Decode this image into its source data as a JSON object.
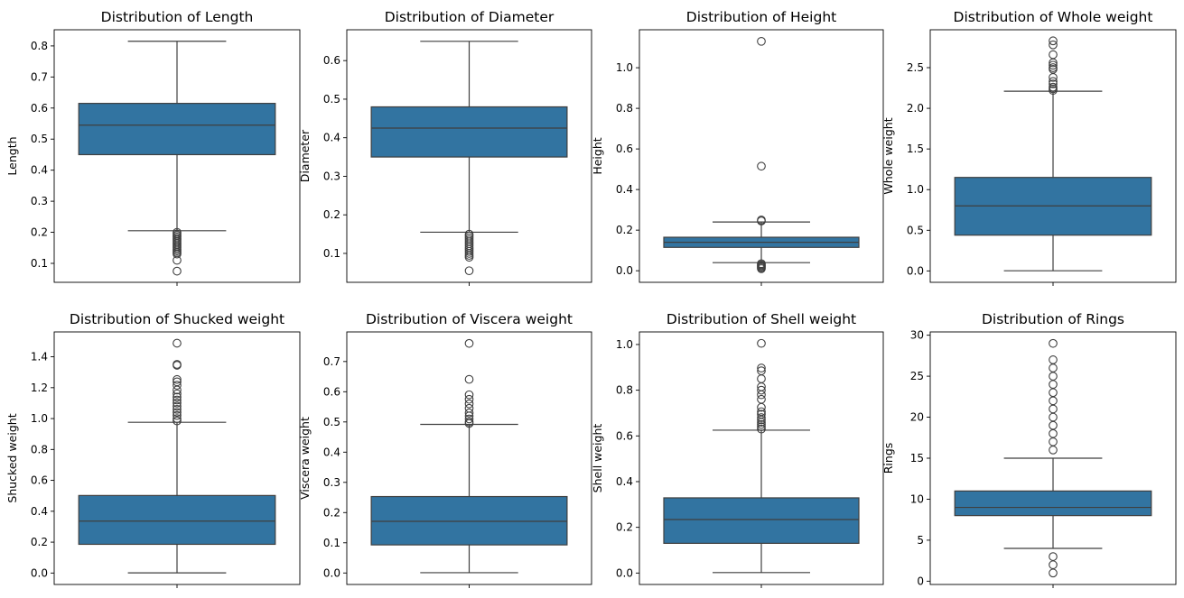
{
  "chart_data": [
    {
      "type": "box",
      "title": "Distribution of Length",
      "ylabel": "Length",
      "ylim": [
        0.039,
        0.852
      ],
      "yticks": [
        "0.1",
        "0.2",
        "0.3",
        "0.4",
        "0.5",
        "0.6",
        "0.7",
        "0.8"
      ],
      "box": {
        "whisker_low": 0.205,
        "q1": 0.45,
        "median": 0.545,
        "q3": 0.615,
        "whisker_high": 0.815
      },
      "outliers": [
        0.2,
        0.195,
        0.19,
        0.185,
        0.18,
        0.175,
        0.17,
        0.165,
        0.16,
        0.155,
        0.15,
        0.145,
        0.14,
        0.135,
        0.13,
        0.11,
        0.075
      ]
    },
    {
      "type": "box",
      "title": "Distribution of Diameter",
      "ylabel": "Diameter",
      "ylim": [
        0.025,
        0.68
      ],
      "yticks": [
        "0.1",
        "0.2",
        "0.3",
        "0.4",
        "0.5",
        "0.6"
      ],
      "box": {
        "whisker_low": 0.155,
        "q1": 0.35,
        "median": 0.425,
        "q3": 0.48,
        "whisker_high": 0.65
      },
      "outliers": [
        0.15,
        0.145,
        0.14,
        0.135,
        0.13,
        0.125,
        0.12,
        0.115,
        0.11,
        0.105,
        0.1,
        0.095,
        0.09,
        0.055
      ]
    },
    {
      "type": "box",
      "title": "Distribution of Height",
      "ylabel": "Height",
      "ylim": [
        -0.057,
        1.187
      ],
      "yticks": [
        "0.0",
        "0.2",
        "0.4",
        "0.6",
        "0.8",
        "1.0"
      ],
      "box": {
        "whisker_low": 0.04,
        "q1": 0.115,
        "median": 0.14,
        "q3": 0.165,
        "whisker_high": 0.24
      },
      "outliers": [
        1.13,
        0.515,
        0.25,
        0.245,
        0.035,
        0.03,
        0.025,
        0.02,
        0.015,
        0.01
      ]
    },
    {
      "type": "box",
      "title": "Distribution of Whole weight",
      "ylabel": "Whole weight",
      "ylim": [
        -0.14,
        2.966
      ],
      "yticks": [
        "0.0",
        "0.5",
        "1.0",
        "1.5",
        "2.0",
        "2.5"
      ],
      "box": {
        "whisker_low": 0.002,
        "q1": 0.44,
        "median": 0.8,
        "q3": 1.15,
        "whisker_high": 2.21
      },
      "outliers": [
        2.83,
        2.78,
        2.66,
        2.56,
        2.53,
        2.5,
        2.48,
        2.38,
        2.33,
        2.3,
        2.26,
        2.24,
        2.22
      ]
    },
    {
      "type": "box",
      "title": "Distribution of Shucked weight",
      "ylabel": "Shucked weight",
      "ylim": [
        -0.074,
        1.561
      ],
      "yticks": [
        "0.0",
        "0.2",
        "0.4",
        "0.6",
        "0.8",
        "1.0",
        "1.2",
        "1.4"
      ],
      "box": {
        "whisker_low": 0.001,
        "q1": 0.186,
        "median": 0.336,
        "q3": 0.502,
        "whisker_high": 0.976
      },
      "outliers": [
        1.488,
        1.351,
        1.345,
        1.253,
        1.238,
        1.216,
        1.185,
        1.16,
        1.139,
        1.12,
        1.101,
        1.08,
        1.06,
        1.04,
        1.02,
        1.0,
        0.985
      ]
    },
    {
      "type": "box",
      "title": "Distribution of Viscera weight",
      "ylabel": "Viscera weight",
      "ylim": [
        -0.038,
        0.798
      ],
      "yticks": [
        "0.0",
        "0.1",
        "0.2",
        "0.3",
        "0.4",
        "0.5",
        "0.6",
        "0.7"
      ],
      "box": {
        "whisker_low": 0.001,
        "q1": 0.093,
        "median": 0.171,
        "q3": 0.253,
        "whisker_high": 0.492
      },
      "outliers": [
        0.76,
        0.641,
        0.59,
        0.575,
        0.56,
        0.545,
        0.53,
        0.52,
        0.51,
        0.5,
        0.495
      ]
    },
    {
      "type": "box",
      "title": "Distribution of Shell weight",
      "ylabel": "Shell weight",
      "ylim": [
        -0.05,
        1.055
      ],
      "yticks": [
        "0.0",
        "0.2",
        "0.4",
        "0.6",
        "0.8",
        "1.0"
      ],
      "box": {
        "whisker_low": 0.002,
        "q1": 0.13,
        "median": 0.234,
        "q3": 0.329,
        "whisker_high": 0.625
      },
      "outliers": [
        1.005,
        0.897,
        0.885,
        0.85,
        0.815,
        0.8,
        0.78,
        0.76,
        0.725,
        0.706,
        0.695,
        0.68,
        0.67,
        0.66,
        0.65,
        0.64,
        0.63
      ]
    },
    {
      "type": "box",
      "title": "Distribution of Rings",
      "ylabel": "Rings",
      "ylim": [
        -0.4,
        30.4
      ],
      "yticks": [
        "0",
        "5",
        "10",
        "15",
        "20",
        "25",
        "30"
      ],
      "box": {
        "whisker_low": 4,
        "q1": 8,
        "median": 9,
        "q3": 11,
        "whisker_high": 15
      },
      "outliers": [
        29,
        27,
        26,
        25,
        24,
        23,
        22,
        21,
        20,
        19,
        18,
        17,
        16,
        3,
        2,
        1
      ]
    }
  ],
  "style": {
    "box_fill": "#3274a1",
    "line_color": "#3f3f3f",
    "outlier_edge": "#3f3f3f"
  }
}
